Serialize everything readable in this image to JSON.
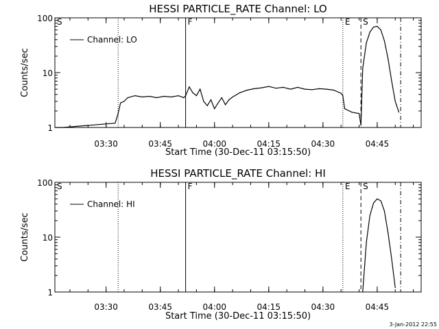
{
  "footer": {
    "timestamp": "3-Jan-2012 22:55"
  },
  "chart_data": [
    {
      "type": "line",
      "title": "HESSI PARTICLE_RATE Channel: LO",
      "xlabel": "Start Time (30-Dec-11 03:15:50)",
      "ylabel": "Counts/sec",
      "y_scale": "log",
      "xlim": [
        "03:15:50",
        "04:57:10"
      ],
      "ylim": [
        1,
        100
      ],
      "x_ticks": [
        "03:30",
        "03:45",
        "04:00",
        "04:15",
        "04:30",
        "04:45"
      ],
      "y_ticks": [
        "1",
        "10",
        "100"
      ],
      "legend": {
        "position": "top-left",
        "entries": [
          "Channel: LO"
        ]
      },
      "markers": [
        {
          "label": "S",
          "time": "03:15:50",
          "style": "dotted"
        },
        {
          "label": "",
          "time": "03:33:20",
          "style": "dotted"
        },
        {
          "label": "F",
          "time": "03:52:00",
          "style": "solid"
        },
        {
          "label": "E",
          "time": "04:35:30",
          "style": "dotted"
        },
        {
          "label": "S",
          "time": "04:40:30",
          "style": "dashed"
        },
        {
          "label": "",
          "time": "04:51:30",
          "style": "dashdot"
        }
      ],
      "series": [
        {
          "x": [
            "03:16:00",
            "03:18:00",
            "03:32:30",
            "03:33:20",
            "03:34:00",
            "03:35:00",
            "03:36:00",
            "03:38:00",
            "03:40:00",
            "03:42:00",
            "03:44:00",
            "03:46:00",
            "03:48:00",
            "03:50:00",
            "03:51:30",
            "03:52:00",
            "03:53:00",
            "03:54:00",
            "03:55:00",
            "03:56:00",
            "03:57:00",
            "03:58:00",
            "03:59:00",
            "04:00:00",
            "04:01:00",
            "04:02:00",
            "04:03:00",
            "04:04:00",
            "04:05:00",
            "04:07:00",
            "04:09:00",
            "04:11:00",
            "04:13:00",
            "04:15:00",
            "04:17:00",
            "04:19:00",
            "04:21:00",
            "04:23:00",
            "04:25:00",
            "04:27:00",
            "04:29:00",
            "04:31:00",
            "04:33:00",
            "04:35:00",
            "04:35:30",
            "04:36:00",
            "04:38:00",
            "04:40:00",
            "04:40:30",
            "04:41:00",
            "04:42:00",
            "04:43:00",
            "04:44:00",
            "04:45:00",
            "04:46:00",
            "04:47:00",
            "04:48:00",
            "04:49:00",
            "04:50:00",
            "04:51:00"
          ],
          "values": [
            1,
            1,
            1.2,
            1.8,
            2.8,
            3.0,
            3.5,
            3.8,
            3.6,
            3.7,
            3.5,
            3.7,
            3.6,
            3.8,
            3.5,
            3.8,
            5.5,
            4.3,
            3.8,
            5.0,
            3.0,
            2.5,
            3.2,
            2.2,
            2.8,
            3.5,
            2.6,
            3.2,
            3.6,
            4.3,
            4.8,
            5.1,
            5.3,
            5.6,
            5.2,
            5.4,
            5.0,
            5.4,
            5.0,
            4.9,
            5.1,
            5.0,
            4.8,
            4.2,
            3.8,
            2.2,
            1.9,
            1.8,
            1.1,
            12,
            35,
            55,
            68,
            70,
            60,
            38,
            18,
            7,
            3,
            1.9
          ]
        }
      ]
    },
    {
      "type": "line",
      "title": "HESSI PARTICLE_RATE Channel: HI",
      "xlabel": "Start Time (30-Dec-11 03:15:50)",
      "ylabel": "Counts/sec",
      "y_scale": "log",
      "xlim": [
        "03:15:50",
        "04:57:10"
      ],
      "ylim": [
        1,
        100
      ],
      "x_ticks": [
        "03:30",
        "03:45",
        "04:00",
        "04:15",
        "04:30",
        "04:45"
      ],
      "y_ticks": [
        "1",
        "10",
        "100"
      ],
      "legend": {
        "position": "top-left",
        "entries": [
          "Channel: HI"
        ]
      },
      "markers": [
        {
          "label": "S",
          "time": "03:15:50",
          "style": "dotted"
        },
        {
          "label": "",
          "time": "03:33:20",
          "style": "dotted"
        },
        {
          "label": "F",
          "time": "03:52:00",
          "style": "solid"
        },
        {
          "label": "E",
          "time": "04:35:30",
          "style": "dotted"
        },
        {
          "label": "S",
          "time": "04:40:30",
          "style": "dashed"
        },
        {
          "label": "",
          "time": "04:51:30",
          "style": "dashdot"
        }
      ],
      "series": [
        {
          "x": [
            "04:41:00",
            "04:42:00",
            "04:43:00",
            "04:44:00",
            "04:45:00",
            "04:46:00",
            "04:47:00",
            "04:48:00",
            "04:49:00",
            "04:50:00"
          ],
          "values": [
            1.0,
            8,
            25,
            42,
            50,
            46,
            30,
            12,
            4,
            1.2
          ]
        }
      ]
    }
  ]
}
